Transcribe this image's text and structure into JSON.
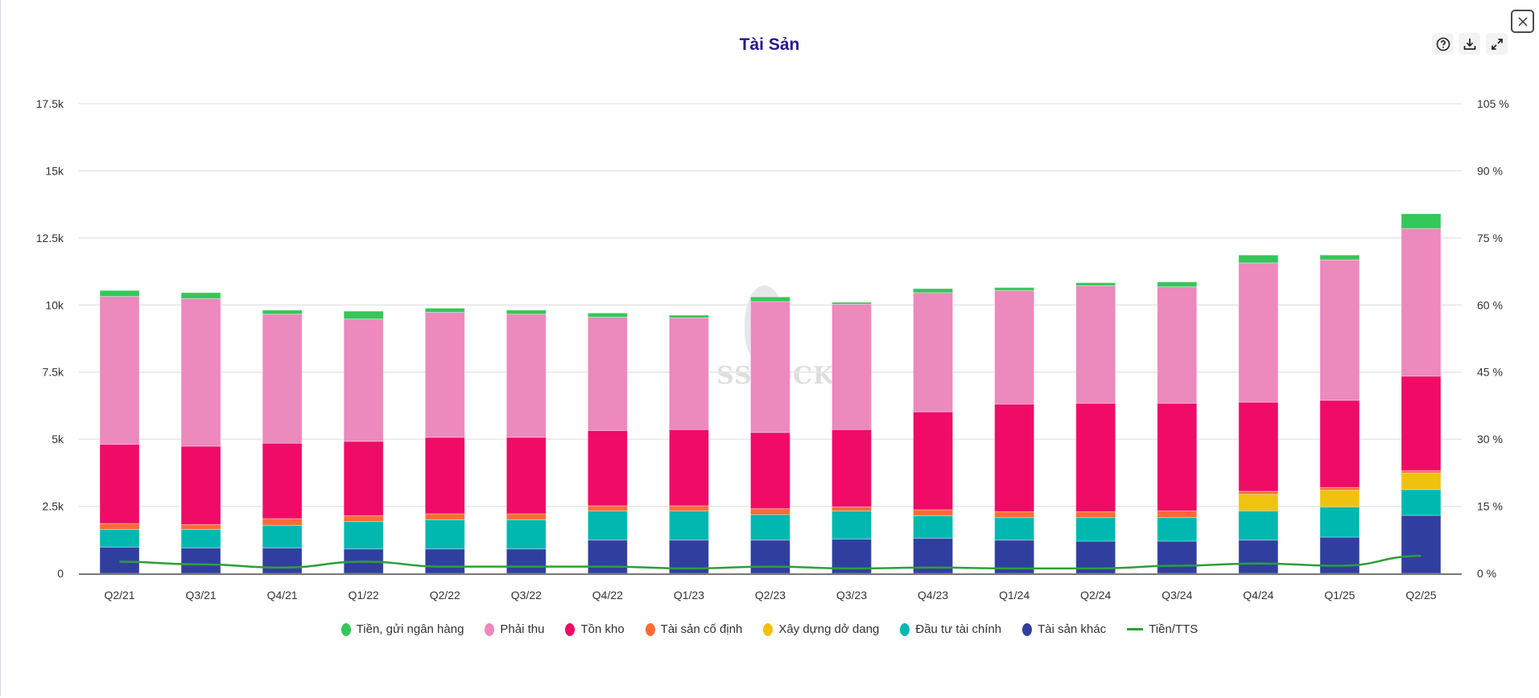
{
  "header": {
    "title": "Tài Sản"
  },
  "toolbar": {
    "help_icon": "question-circle-icon",
    "download_icon": "download-icon",
    "expand_icon": "expand-icon",
    "close_icon": "close-icon"
  },
  "watermark": {
    "text": "SSTOCK"
  },
  "chart_data": {
    "type": "bar",
    "stacked": true,
    "title": "Tài Sản",
    "categories": [
      "Q2/21",
      "Q3/21",
      "Q4/21",
      "Q1/22",
      "Q2/22",
      "Q3/22",
      "Q4/22",
      "Q1/23",
      "Q2/23",
      "Q3/23",
      "Q4/23",
      "Q1/24",
      "Q2/24",
      "Q3/24",
      "Q4/24",
      "Q1/25",
      "Q2/25"
    ],
    "y_ticks": [
      "0",
      "2.5k",
      "5k",
      "7.5k",
      "10k",
      "12.5k",
      "15k",
      "17.5k"
    ],
    "y_tick_values": [
      0,
      2500,
      5000,
      7500,
      10000,
      12500,
      15000,
      17500
    ],
    "y2_ticks": [
      "0 %",
      "15 %",
      "30 %",
      "45 %",
      "60 %",
      "75 %",
      "90 %",
      "105 %"
    ],
    "ylim": [
      0,
      17500
    ],
    "y2lim": [
      0,
      105
    ],
    "grid": true,
    "legend_position": "bottom",
    "series": [
      {
        "name": "Tiền, gửi ngân hàng",
        "color": "#34c759",
        "values": [
          220,
          220,
          150,
          290,
          150,
          150,
          150,
          100,
          170,
          70,
          150,
          110,
          110,
          180,
          290,
          180,
          550
        ]
      },
      {
        "name": "Phải thu",
        "color": "#ec89bd",
        "values": [
          5510,
          5500,
          4810,
          4560,
          4660,
          4590,
          4230,
          4160,
          4880,
          4670,
          4440,
          4230,
          4380,
          4340,
          5190,
          5230,
          5500
        ]
      },
      {
        "name": "Tồn kho",
        "color": "#ef0b66",
        "values": [
          2950,
          2920,
          2810,
          2770,
          2850,
          2850,
          2800,
          2840,
          2840,
          2880,
          3650,
          4010,
          4040,
          4010,
          3320,
          3250,
          3520
        ]
      },
      {
        "name": "Tài sản cố định",
        "color": "#ff6b35",
        "values": [
          220,
          180,
          250,
          220,
          220,
          220,
          190,
          190,
          220,
          150,
          220,
          220,
          220,
          250,
          110,
          100,
          90
        ]
      },
      {
        "name": "Xây dựng dở dang",
        "color": "#f0c20f",
        "values": [
          0,
          0,
          0,
          0,
          0,
          0,
          0,
          0,
          0,
          0,
          0,
          0,
          0,
          0,
          620,
          620,
          620
        ]
      },
      {
        "name": "Đầu tư tài chính",
        "color": "#00b8b0",
        "values": [
          660,
          690,
          840,
          1020,
          1090,
          1090,
          1090,
          1090,
          950,
          1050,
          840,
          840,
          880,
          880,
          1090,
          1130,
          960
        ]
      },
      {
        "name": "Tài sản khác",
        "color": "#303f9f",
        "values": [
          980,
          950,
          950,
          910,
          910,
          910,
          1240,
          1240,
          1240,
          1280,
          1310,
          1240,
          1200,
          1200,
          1240,
          1350,
          2160
        ]
      }
    ],
    "line_series": {
      "name": "Tiền/TTS",
      "color": "#2e9e3a",
      "axis": "right",
      "unit": "%",
      "values": [
        2.6,
        2.0,
        1.3,
        2.6,
        1.5,
        1.5,
        1.5,
        1.1,
        1.5,
        1.1,
        1.3,
        1.1,
        1.1,
        1.7,
        2.2,
        1.7,
        3.9
      ]
    }
  }
}
